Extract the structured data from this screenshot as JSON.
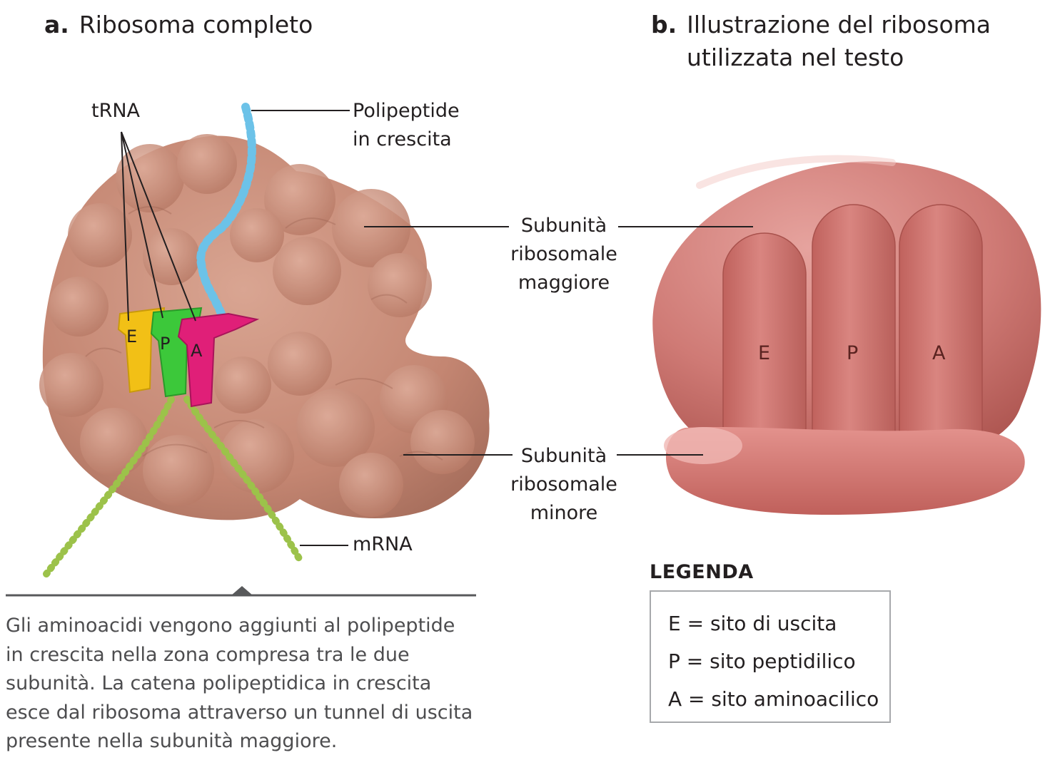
{
  "panel_a": {
    "letter": "a.",
    "title": "Ribosoma completo",
    "labels": {
      "trna": "tRNA",
      "polypeptide": [
        "Polipeptide",
        "in crescita"
      ],
      "mrna": "mRNA"
    },
    "site_letters": [
      "E",
      "P",
      "A"
    ],
    "caption": "Gli aminoacidi vengono aggiunti al polipeptide in crescita nella zona compresa tra le due subunità. La catena polipeptidica in crescita esce dal ribosoma attraverso un tunnel di uscita presente nella subunità maggiore."
  },
  "panel_b": {
    "letter": "b.",
    "title_lines": [
      "Illustrazione del ribosoma",
      "utilizzata nel testo"
    ],
    "site_letters": [
      "E",
      "P",
      "A"
    ]
  },
  "subunit_labels": {
    "large": [
      "Subunità",
      "ribosomale",
      "maggiore"
    ],
    "small": [
      "Subunità",
      "ribosomale",
      "minore"
    ]
  },
  "legend": {
    "title": "LEGENDA",
    "entries": [
      "E = sito di uscita",
      "P = sito peptidilico",
      "A = sito aminoacilico"
    ]
  },
  "colors": {
    "ribosome_a": "#c98d7a",
    "ribosome_b": "#c9706c",
    "trna_e": "#f2c016",
    "trna_p": "#3cc83a",
    "trna_a": "#e01f78",
    "polypeptide": "#6cc2e8",
    "mrna": "#9cc24a"
  }
}
